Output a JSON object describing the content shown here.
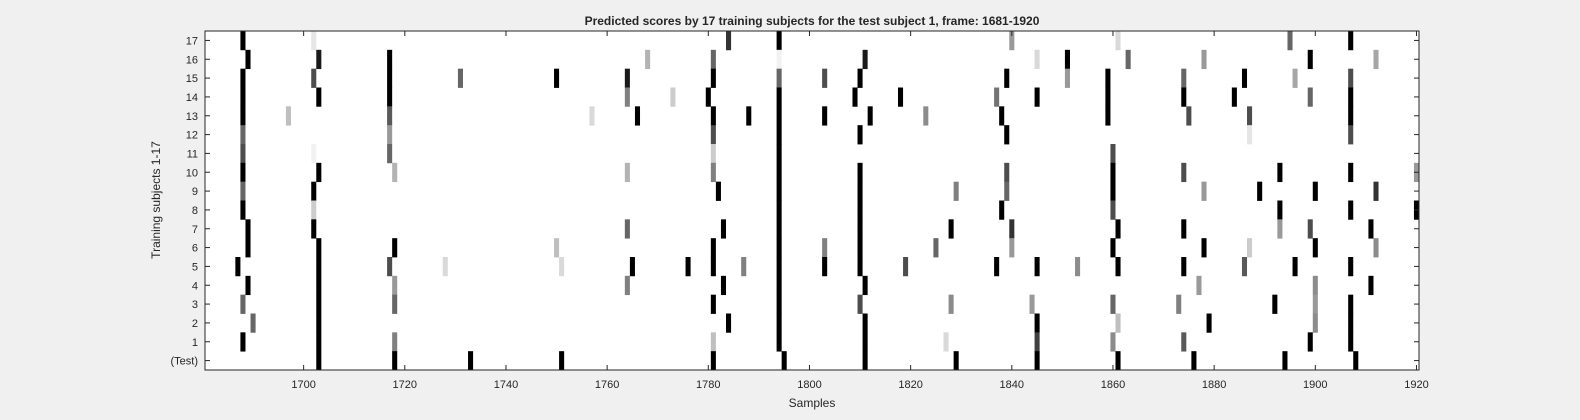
{
  "chart_data": {
    "type": "heatmap",
    "title": "Predicted scores by 17 training subjects for the test subject 1, frame: 1681-1920",
    "xlabel": "Samples",
    "ylabel": "Training subjects 1-17",
    "xlim": [
      1681,
      1920
    ],
    "x_ticks": [
      1700,
      1720,
      1740,
      1760,
      1780,
      1800,
      1820,
      1840,
      1860,
      1880,
      1900,
      1920
    ],
    "row_labels": [
      "17",
      "16",
      "15",
      "14",
      "13",
      "12",
      "11",
      "10",
      "9",
      "8",
      "7",
      "6",
      "5",
      "4",
      "3",
      "2",
      "1",
      "(Test)"
    ],
    "colormap": "gray (0 = black, 1 = white)",
    "cell_value_meaning": "0 = black mark, 1 = white background",
    "rows": [
      {
        "label": "17",
        "marks": [
          [
            1688,
            0.0
          ],
          [
            1702,
            0.9
          ],
          [
            1784,
            0.2
          ],
          [
            1794,
            0.0
          ],
          [
            1840,
            0.6
          ],
          [
            1861,
            0.85
          ],
          [
            1895,
            0.4
          ],
          [
            1907,
            0.0
          ]
        ]
      },
      {
        "label": "16",
        "marks": [
          [
            1689,
            0.0
          ],
          [
            1703,
            0.1
          ],
          [
            1717,
            0.0
          ],
          [
            1768,
            0.7
          ],
          [
            1781,
            0.4
          ],
          [
            1794,
            0.95
          ],
          [
            1811,
            0.1
          ],
          [
            1845,
            0.85
          ],
          [
            1851,
            0.0
          ],
          [
            1863,
            0.4
          ],
          [
            1878,
            0.6
          ],
          [
            1899,
            0.0
          ],
          [
            1912,
            0.65
          ]
        ]
      },
      {
        "label": "15",
        "marks": [
          [
            1688,
            0.0
          ],
          [
            1702,
            0.3
          ],
          [
            1717,
            0.0
          ],
          [
            1731,
            0.4
          ],
          [
            1750,
            0.0
          ],
          [
            1764,
            0.1
          ],
          [
            1781,
            0.0
          ],
          [
            1794,
            0.4
          ],
          [
            1803,
            0.3
          ],
          [
            1810,
            0.0
          ],
          [
            1839,
            0.0
          ],
          [
            1851,
            0.6
          ],
          [
            1859,
            0.0
          ],
          [
            1874,
            0.4
          ],
          [
            1886,
            0.0
          ],
          [
            1896,
            0.65
          ],
          [
            1907,
            0.3
          ]
        ]
      },
      {
        "label": "14",
        "marks": [
          [
            1688,
            0.0
          ],
          [
            1703,
            0.0
          ],
          [
            1717,
            0.0
          ],
          [
            1764,
            0.5
          ],
          [
            1773,
            0.8
          ],
          [
            1780,
            0.0
          ],
          [
            1794,
            0.0
          ],
          [
            1809,
            0.0
          ],
          [
            1818,
            0.0
          ],
          [
            1837,
            0.45
          ],
          [
            1845,
            0.0
          ],
          [
            1859,
            0.0
          ],
          [
            1874,
            0.0
          ],
          [
            1884,
            0.0
          ],
          [
            1899,
            0.4
          ],
          [
            1907,
            0.0
          ]
        ]
      },
      {
        "label": "13",
        "marks": [
          [
            1688,
            0.0
          ],
          [
            1697,
            0.75
          ],
          [
            1717,
            0.35
          ],
          [
            1757,
            0.85
          ],
          [
            1766,
            0.0
          ],
          [
            1781,
            0.0
          ],
          [
            1788,
            0.0
          ],
          [
            1794,
            0.0
          ],
          [
            1803,
            0.0
          ],
          [
            1812,
            0.0
          ],
          [
            1823,
            0.55
          ],
          [
            1838,
            0.0
          ],
          [
            1859,
            0.0
          ],
          [
            1875,
            0.3
          ],
          [
            1887,
            0.3
          ],
          [
            1907,
            0.0
          ]
        ]
      },
      {
        "label": "12",
        "marks": [
          [
            1688,
            0.4
          ],
          [
            1717,
            0.6
          ],
          [
            1781,
            0.3
          ],
          [
            1794,
            0.0
          ],
          [
            1810,
            0.0
          ],
          [
            1839,
            0.0
          ],
          [
            1887,
            0.9
          ],
          [
            1907,
            0.3
          ]
        ]
      },
      {
        "label": "11",
        "marks": [
          [
            1688,
            0.3
          ],
          [
            1702,
            0.95
          ],
          [
            1717,
            0.4
          ],
          [
            1781,
            0.8
          ],
          [
            1794,
            0.0
          ],
          [
            1860,
            0.3
          ]
        ]
      },
      {
        "label": "10",
        "marks": [
          [
            1688,
            0.0
          ],
          [
            1703,
            0.0
          ],
          [
            1718,
            0.7
          ],
          [
            1764,
            0.7
          ],
          [
            1781,
            0.5
          ],
          [
            1794,
            0.0
          ],
          [
            1810,
            0.0
          ],
          [
            1839,
            0.3
          ],
          [
            1860,
            0.0
          ],
          [
            1874,
            0.3
          ],
          [
            1893,
            0.0
          ],
          [
            1907,
            0.0
          ],
          [
            1920,
            0.6
          ]
        ]
      },
      {
        "label": "9",
        "marks": [
          [
            1688,
            0.4
          ],
          [
            1702,
            0.0
          ],
          [
            1782,
            0.0
          ],
          [
            1794,
            0.0
          ],
          [
            1810,
            0.0
          ],
          [
            1829,
            0.5
          ],
          [
            1839,
            0.4
          ],
          [
            1860,
            0.0
          ],
          [
            1878,
            0.6
          ],
          [
            1889,
            0.0
          ],
          [
            1900,
            0.0
          ],
          [
            1912,
            0.2
          ]
        ]
      },
      {
        "label": "8",
        "marks": [
          [
            1688,
            0.0
          ],
          [
            1702,
            0.8
          ],
          [
            1794,
            0.0
          ],
          [
            1810,
            0.0
          ],
          [
            1838,
            0.0
          ],
          [
            1860,
            0.3
          ],
          [
            1893,
            0.0
          ],
          [
            1907,
            0.0
          ],
          [
            1920,
            0.0
          ]
        ]
      },
      {
        "label": "7",
        "marks": [
          [
            1689,
            0.0
          ],
          [
            1702,
            0.0
          ],
          [
            1764,
            0.4
          ],
          [
            1783,
            0.0
          ],
          [
            1794,
            0.0
          ],
          [
            1810,
            0.0
          ],
          [
            1828,
            0.0
          ],
          [
            1840,
            0.2
          ],
          [
            1861,
            0.0
          ],
          [
            1874,
            0.0
          ],
          [
            1893,
            0.6
          ],
          [
            1899,
            0.3
          ],
          [
            1911,
            0.0
          ]
        ]
      },
      {
        "label": "6",
        "marks": [
          [
            1689,
            0.0
          ],
          [
            1703,
            0.0
          ],
          [
            1718,
            0.0
          ],
          [
            1750,
            0.75
          ],
          [
            1781,
            0.0
          ],
          [
            1794,
            0.0
          ],
          [
            1803,
            0.5
          ],
          [
            1810,
            0.0
          ],
          [
            1825,
            0.4
          ],
          [
            1840,
            0.6
          ],
          [
            1860,
            0.0
          ],
          [
            1878,
            0.0
          ],
          [
            1887,
            0.8
          ],
          [
            1900,
            0.0
          ],
          [
            1912,
            0.55
          ]
        ]
      },
      {
        "label": "5",
        "marks": [
          [
            1687,
            0.0
          ],
          [
            1703,
            0.0
          ],
          [
            1717,
            0.3
          ],
          [
            1728,
            0.85
          ],
          [
            1751,
            0.85
          ],
          [
            1765,
            0.0
          ],
          [
            1776,
            0.0
          ],
          [
            1781,
            0.0
          ],
          [
            1787,
            0.5
          ],
          [
            1794,
            0.0
          ],
          [
            1803,
            0.0
          ],
          [
            1810,
            0.0
          ],
          [
            1819,
            0.3
          ],
          [
            1837,
            0.0
          ],
          [
            1845,
            0.0
          ],
          [
            1853,
            0.55
          ],
          [
            1861,
            0.0
          ],
          [
            1874,
            0.0
          ],
          [
            1886,
            0.35
          ],
          [
            1896,
            0.0
          ],
          [
            1907,
            0.0
          ]
        ]
      },
      {
        "label": "4",
        "marks": [
          [
            1689,
            0.0
          ],
          [
            1703,
            0.0
          ],
          [
            1718,
            0.6
          ],
          [
            1764,
            0.5
          ],
          [
            1783,
            0.0
          ],
          [
            1794,
            0.0
          ],
          [
            1811,
            0.0
          ],
          [
            1877,
            0.6
          ],
          [
            1900,
            0.55
          ],
          [
            1911,
            0.0
          ]
        ]
      },
      {
        "label": "3",
        "marks": [
          [
            1688,
            0.4
          ],
          [
            1703,
            0.0
          ],
          [
            1718,
            0.4
          ],
          [
            1781,
            0.0
          ],
          [
            1794,
            0.0
          ],
          [
            1810,
            0.3
          ],
          [
            1828,
            0.55
          ],
          [
            1844,
            0.6
          ],
          [
            1860,
            0.4
          ],
          [
            1873,
            0.5
          ],
          [
            1892,
            0.0
          ],
          [
            1900,
            0.6
          ],
          [
            1907,
            0.0
          ]
        ]
      },
      {
        "label": "2",
        "marks": [
          [
            1690,
            0.4
          ],
          [
            1703,
            0.0
          ],
          [
            1784,
            0.0
          ],
          [
            1794,
            0.0
          ],
          [
            1811,
            0.0
          ],
          [
            1845,
            0.0
          ],
          [
            1861,
            0.75
          ],
          [
            1879,
            0.0
          ],
          [
            1900,
            0.55
          ],
          [
            1907,
            0.0
          ]
        ]
      },
      {
        "label": "1",
        "marks": [
          [
            1688,
            0.0
          ],
          [
            1703,
            0.0
          ],
          [
            1718,
            0.5
          ],
          [
            1781,
            0.75
          ],
          [
            1794,
            0.0
          ],
          [
            1811,
            0.0
          ],
          [
            1827,
            0.85
          ],
          [
            1845,
            0.25
          ],
          [
            1860,
            0.55
          ],
          [
            1874,
            0.35
          ],
          [
            1899,
            0.0
          ],
          [
            1907,
            0.0
          ]
        ]
      },
      {
        "label": "(Test)",
        "marks": [
          [
            1703,
            0.0
          ],
          [
            1718,
            0.0
          ],
          [
            1733,
            0.0
          ],
          [
            1751,
            0.0
          ],
          [
            1781,
            0.0
          ],
          [
            1795,
            0.0
          ],
          [
            1811,
            0.0
          ],
          [
            1829,
            0.0
          ],
          [
            1845,
            0.0
          ],
          [
            1861,
            0.0
          ],
          [
            1876,
            0.0
          ],
          [
            1894,
            0.0
          ],
          [
            1908,
            0.0
          ]
        ]
      }
    ]
  }
}
